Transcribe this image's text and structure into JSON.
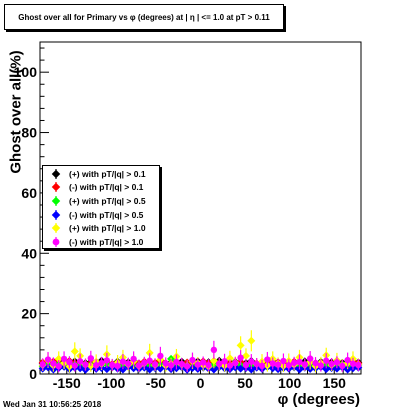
{
  "chart_data": {
    "type": "scatter",
    "title": "Ghost over all for Primary vs φ (degrees) at | η | <= 1.0 at pT > 0.11",
    "xlabel": "φ (degrees)",
    "ylabel": "Ghost over all(%)",
    "xlim": [
      -180,
      180
    ],
    "ylim": [
      0,
      110
    ],
    "x_ticks": [
      -150,
      -100,
      -50,
      0,
      50,
      100,
      150
    ],
    "y_ticks": [
      0,
      20,
      40,
      60,
      80,
      100
    ],
    "grid": false,
    "legend_position": "left",
    "x": [
      -177,
      -171,
      -165,
      -159,
      -153,
      -147,
      -141,
      -135,
      -129,
      -123,
      -117,
      -111,
      -105,
      -99,
      -93,
      -87,
      -81,
      -75,
      -69,
      -63,
      -57,
      -51,
      -45,
      -39,
      -33,
      -27,
      -21,
      -15,
      -9,
      -3,
      3,
      9,
      15,
      21,
      27,
      33,
      39,
      45,
      51,
      57,
      63,
      69,
      75,
      81,
      87,
      93,
      99,
      105,
      111,
      117,
      123,
      129,
      135,
      141,
      147,
      153,
      159,
      165,
      171,
      177
    ],
    "series": [
      {
        "name": "(+) with pT/|q| > 0.1",
        "color": "#000000",
        "marker": "diamond",
        "values": [
          3.5,
          4.0,
          3.0,
          4.5,
          3.5,
          3.8,
          4.2,
          3.0,
          3.6,
          4.0,
          3.3,
          4.4,
          3.7,
          3.2,
          4.1,
          3.5,
          3.9,
          4.3,
          3.1,
          3.6,
          4.0,
          3.4,
          4.6,
          3.2,
          3.8,
          3.5,
          4.1,
          3.0,
          3.7,
          4.2,
          3.3,
          3.9,
          3.5,
          4.4,
          3.1,
          3.8,
          4.0,
          3.4,
          3.6,
          4.3,
          3.2,
          3.9,
          3.5,
          4.1,
          3.7,
          3.3,
          4.0,
          3.6,
          3.2,
          4.2,
          3.8,
          3.4,
          4.0,
          3.5,
          3.9,
          3.1,
          3.7,
          4.1,
          3.4,
          3.8
        ],
        "errors": [
          0.6,
          0.6,
          0.6,
          0.6,
          0.6,
          0.6,
          0.6,
          0.6,
          0.6,
          0.6,
          0.6,
          0.6,
          0.6,
          0.6,
          0.6,
          0.6,
          0.6,
          0.6,
          0.6,
          0.6,
          0.6,
          0.6,
          0.6,
          0.6,
          0.6,
          0.6,
          0.6,
          0.6,
          0.6,
          0.6,
          0.6,
          0.6,
          0.6,
          0.6,
          0.6,
          0.6,
          0.6,
          0.6,
          0.6,
          0.6,
          0.6,
          0.6,
          0.6,
          0.6,
          0.6,
          0.6,
          0.6,
          0.6,
          0.6,
          0.6,
          0.6,
          0.6,
          0.6,
          0.6,
          0.6,
          0.6,
          0.6,
          0.6,
          0.6,
          0.6
        ]
      },
      {
        "name": "(-) with pT/|q| > 0.1",
        "color": "#ff0000",
        "marker": "diamond",
        "values": [
          3.8,
          3.2,
          4.1,
          3.6,
          3.0,
          4.3,
          3.5,
          3.9,
          3.1,
          3.7,
          4.0,
          3.4,
          3.8,
          3.3,
          3.6,
          4.2,
          3.0,
          3.9,
          3.5,
          4.1,
          3.2,
          3.7,
          4.4,
          3.6,
          3.1,
          4.0,
          3.3,
          3.8,
          3.5,
          3.0,
          4.2,
          3.6,
          3.9,
          3.2,
          4.1,
          3.4,
          3.7,
          4.0,
          3.1,
          3.8,
          3.5,
          3.3,
          4.3,
          3.6,
          3.9,
          3.2,
          3.7,
          4.1,
          3.5,
          3.0,
          3.8,
          3.6,
          3.3,
          4.0,
          3.4,
          3.9,
          3.2,
          3.6,
          4.2,
          3.5
        ],
        "errors": [
          0.7,
          0.7,
          0.7,
          0.7,
          0.7,
          0.7,
          0.7,
          0.7,
          0.7,
          0.7,
          0.7,
          0.7,
          0.7,
          0.7,
          0.7,
          0.7,
          0.7,
          0.7,
          0.7,
          0.7,
          0.7,
          0.7,
          0.7,
          0.7,
          0.7,
          0.7,
          0.7,
          0.7,
          0.7,
          0.7,
          0.7,
          0.7,
          0.7,
          0.7,
          0.7,
          0.7,
          0.7,
          0.7,
          0.7,
          0.7,
          0.7,
          0.7,
          0.7,
          0.7,
          0.7,
          0.7,
          0.7,
          0.7,
          0.7,
          0.7,
          0.7,
          0.7,
          0.7,
          0.7,
          0.7,
          0.7,
          0.7,
          0.7,
          0.7,
          0.7
        ]
      },
      {
        "name": "(+) with pT/|q| > 0.5",
        "color": "#00ff00",
        "marker": "diamond",
        "values": [
          2.6,
          3.0,
          2.3,
          3.2,
          2.8,
          2.4,
          3.1,
          2.7,
          2.5,
          3.0,
          2.2,
          2.9,
          3.3,
          2.6,
          2.4,
          3.1,
          2.8,
          2.3,
          3.0,
          2.7,
          2.5,
          3.2,
          2.9,
          2.4,
          5.0,
          2.6,
          3.1,
          2.8,
          2.3,
          3.0,
          2.7,
          2.5,
          3.2,
          2.6,
          2.9,
          2.4,
          3.1,
          2.8,
          2.2,
          3.0,
          2.6,
          2.9,
          2.4,
          3.2,
          2.7,
          2.5,
          3.0,
          2.8,
          2.3,
          3.1,
          2.6,
          2.9,
          2.4,
          3.0,
          2.7,
          2.5,
          3.2,
          2.8,
          2.6,
          3.0
        ],
        "errors": [
          0.8,
          0.8,
          0.8,
          0.8,
          0.8,
          0.8,
          0.8,
          0.8,
          0.8,
          0.8,
          0.8,
          0.8,
          0.8,
          0.8,
          0.8,
          0.8,
          0.8,
          0.8,
          0.8,
          0.8,
          0.8,
          0.8,
          0.8,
          0.8,
          0.8,
          0.8,
          0.8,
          0.8,
          0.8,
          0.8,
          0.8,
          0.8,
          0.8,
          0.8,
          0.8,
          0.8,
          0.8,
          0.8,
          0.8,
          0.8,
          0.8,
          0.8,
          0.8,
          0.8,
          0.8,
          0.8,
          0.8,
          0.8,
          0.8,
          0.8,
          0.8,
          0.8,
          0.8,
          0.8,
          0.8,
          0.8,
          0.8,
          0.8,
          0.8,
          0.8
        ]
      },
      {
        "name": "(-) with pT/|q| > 0.5",
        "color": "#0000ff",
        "marker": "diamond",
        "values": [
          1.8,
          2.2,
          1.5,
          2.0,
          2.4,
          1.6,
          2.1,
          1.9,
          1.4,
          2.3,
          1.7,
          2.0,
          1.6,
          2.2,
          1.8,
          1.5,
          2.4,
          1.9,
          1.7,
          2.1,
          1.5,
          2.0,
          1.8,
          2.3,
          1.6,
          1.9,
          2.2,
          1.4,
          2.0,
          1.7,
          2.1,
          1.8,
          1.5,
          2.3,
          1.9,
          1.6,
          2.2,
          1.8,
          2.0,
          1.5,
          2.1,
          1.7,
          2.4,
          1.9,
          1.6,
          2.0,
          1.8,
          2.2,
          1.5,
          2.1,
          1.7,
          1.9,
          2.3,
          1.6,
          2.0,
          1.8,
          2.2,
          1.5,
          1.9,
          2.1
        ],
        "errors": [
          0.9,
          0.9,
          0.9,
          0.9,
          0.9,
          0.9,
          0.9,
          0.9,
          0.9,
          0.9,
          0.9,
          0.9,
          0.9,
          0.9,
          0.9,
          0.9,
          0.9,
          0.9,
          0.9,
          0.9,
          0.9,
          0.9,
          0.9,
          0.9,
          0.9,
          0.9,
          0.9,
          0.9,
          0.9,
          0.9,
          0.9,
          0.9,
          0.9,
          0.9,
          0.9,
          0.9,
          0.9,
          0.9,
          0.9,
          0.9,
          0.9,
          0.9,
          0.9,
          0.9,
          0.9,
          0.9,
          0.9,
          0.9,
          0.9,
          0.9,
          0.9,
          0.9,
          0.9,
          0.9,
          0.9,
          0.9,
          0.9,
          0.9,
          0.9,
          0.9
        ]
      },
      {
        "name": "(+) with pT/|q| > 1.0",
        "color": "#ffff00",
        "marker": "diamond",
        "values": [
          3.0,
          4.5,
          2.8,
          5.0,
          3.6,
          2.5,
          7.5,
          6.0,
          3.2,
          2.7,
          4.0,
          3.3,
          6.5,
          2.9,
          3.8,
          5.5,
          3.1,
          4.2,
          2.6,
          3.5,
          7.0,
          3.0,
          4.8,
          2.8,
          3.4,
          5.8,
          3.1,
          2.7,
          4.2,
          3.6,
          3.0,
          2.5,
          4.4,
          3.2,
          2.8,
          5.2,
          3.8,
          9.5,
          6.0,
          11.0,
          3.3,
          4.1,
          2.8,
          5.0,
          3.5,
          2.7,
          4.3,
          3.1,
          5.5,
          3.0,
          4.0,
          2.6,
          3.7,
          6.2,
          3.0,
          4.5,
          2.9,
          3.6,
          5.0,
          3.2
        ],
        "errors": [
          2.0,
          2.5,
          2.0,
          2.5,
          2.0,
          2.0,
          3.0,
          2.5,
          2.0,
          2.0,
          2.5,
          2.0,
          3.0,
          2.0,
          2.5,
          2.5,
          2.0,
          2.5,
          2.0,
          2.0,
          3.0,
          2.0,
          2.5,
          2.0,
          2.0,
          2.5,
          2.0,
          2.0,
          2.5,
          2.0,
          2.0,
          2.0,
          2.5,
          2.0,
          2.0,
          2.5,
          2.0,
          3.0,
          2.5,
          3.5,
          2.0,
          2.5,
          2.0,
          2.5,
          2.0,
          2.0,
          2.5,
          2.0,
          2.5,
          2.0,
          2.5,
          2.0,
          2.0,
          2.5,
          2.0,
          2.5,
          2.0,
          2.0,
          2.5,
          2.0
        ]
      },
      {
        "name": "(-) with pT/|q| > 1.0",
        "color": "#ff00ff",
        "marker": "circle",
        "values": [
          3.2,
          4.8,
          3.5,
          2.6,
          5.0,
          3.9,
          2.8,
          4.2,
          3.1,
          5.2,
          2.9,
          3.6,
          4.5,
          3.0,
          2.7,
          4.1,
          3.4,
          5.0,
          2.8,
          3.7,
          4.4,
          3.2,
          6.0,
          3.5,
          2.9,
          4.0,
          3.3,
          2.6,
          4.6,
          3.1,
          3.8,
          2.9,
          8.0,
          3.4,
          4.2,
          2.8,
          3.6,
          5.4,
          3.0,
          4.1,
          3.3,
          2.7,
          4.8,
          3.5,
          3.1,
          4.3,
          2.9,
          3.7,
          4.0,
          3.2,
          5.1,
          3.6,
          2.8,
          4.4,
          3.3,
          3.9,
          2.7,
          4.6,
          3.4,
          3.0
        ],
        "errors": [
          2.0,
          2.5,
          2.0,
          2.0,
          2.5,
          2.0,
          2.0,
          2.5,
          2.0,
          2.5,
          2.0,
          2.0,
          2.5,
          2.0,
          2.0,
          2.5,
          2.0,
          2.5,
          2.0,
          2.0,
          2.5,
          2.0,
          3.0,
          2.0,
          2.0,
          2.5,
          2.0,
          2.0,
          2.5,
          2.0,
          2.0,
          2.0,
          3.0,
          2.0,
          2.5,
          2.0,
          2.0,
          2.5,
          2.0,
          2.5,
          2.0,
          2.0,
          2.5,
          2.0,
          2.0,
          2.5,
          2.0,
          2.0,
          2.5,
          2.0,
          2.5,
          2.0,
          2.0,
          2.5,
          2.0,
          2.0,
          2.0,
          2.5,
          2.0,
          2.0
        ]
      }
    ]
  },
  "footer": {
    "timestamp": "Wed Jan 31 10:56:25 2018"
  }
}
